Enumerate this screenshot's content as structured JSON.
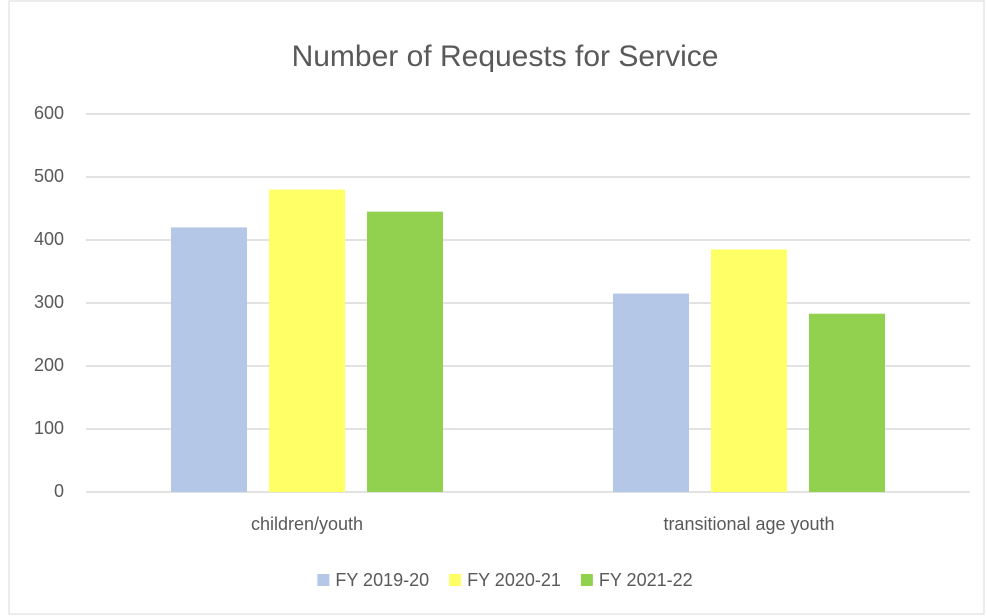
{
  "chart_data": {
    "type": "bar",
    "title": "Number of Requests for Service",
    "categories": [
      "children/youth",
      "transitional age youth"
    ],
    "series": [
      {
        "name": "FY 2019-20",
        "color": "#b4c7e7",
        "values": [
          420,
          315
        ]
      },
      {
        "name": "FY 2020-21",
        "color": "#ffff66",
        "values": [
          480,
          385
        ]
      },
      {
        "name": "FY 2021-22",
        "color": "#92d050",
        "values": [
          445,
          283
        ]
      }
    ],
    "ylim": [
      0,
      600
    ],
    "yticks": [
      0,
      100,
      200,
      300,
      400,
      500,
      600
    ],
    "grid": true,
    "legend": "bottom"
  }
}
